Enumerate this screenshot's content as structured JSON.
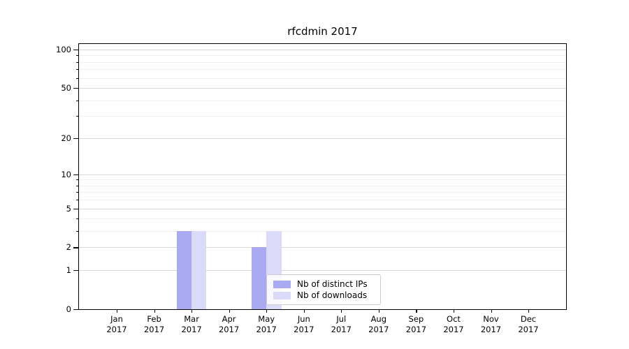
{
  "chart_data": {
    "type": "bar",
    "title": "rfcdmin 2017",
    "x_categories": [
      "Jan",
      "Feb",
      "Mar",
      "Apr",
      "May",
      "Jun",
      "Jul",
      "Aug",
      "Sep",
      "Oct",
      "Nov",
      "Dec"
    ],
    "x_year_label": "2017",
    "series": [
      {
        "name": "Nb of distinct IPs",
        "color": "#aaaaf3",
        "values": [
          0,
          0,
          3,
          0,
          2,
          0,
          0,
          0,
          0,
          0,
          0,
          0
        ]
      },
      {
        "name": "Nb of downloads",
        "color": "#dbdbf9",
        "values": [
          0,
          0,
          3,
          0,
          3,
          0,
          0,
          0,
          0,
          0,
          0,
          0
        ]
      }
    ],
    "yaxis": {
      "scale": "log1p",
      "ylim": [
        0,
        100
      ],
      "ticks_major": [
        0,
        1,
        2,
        5,
        10,
        20,
        50,
        100
      ],
      "ticks_minor": [
        3,
        4,
        6,
        7,
        8,
        9,
        30,
        40,
        60,
        70,
        80,
        90
      ]
    },
    "legend_position": "lower-center-inside",
    "grid": true
  },
  "colors": {
    "grid_major": "#d8d8d8",
    "grid_minor": "#f0f0f0",
    "axis": "#000000",
    "background": "#ffffff"
  }
}
